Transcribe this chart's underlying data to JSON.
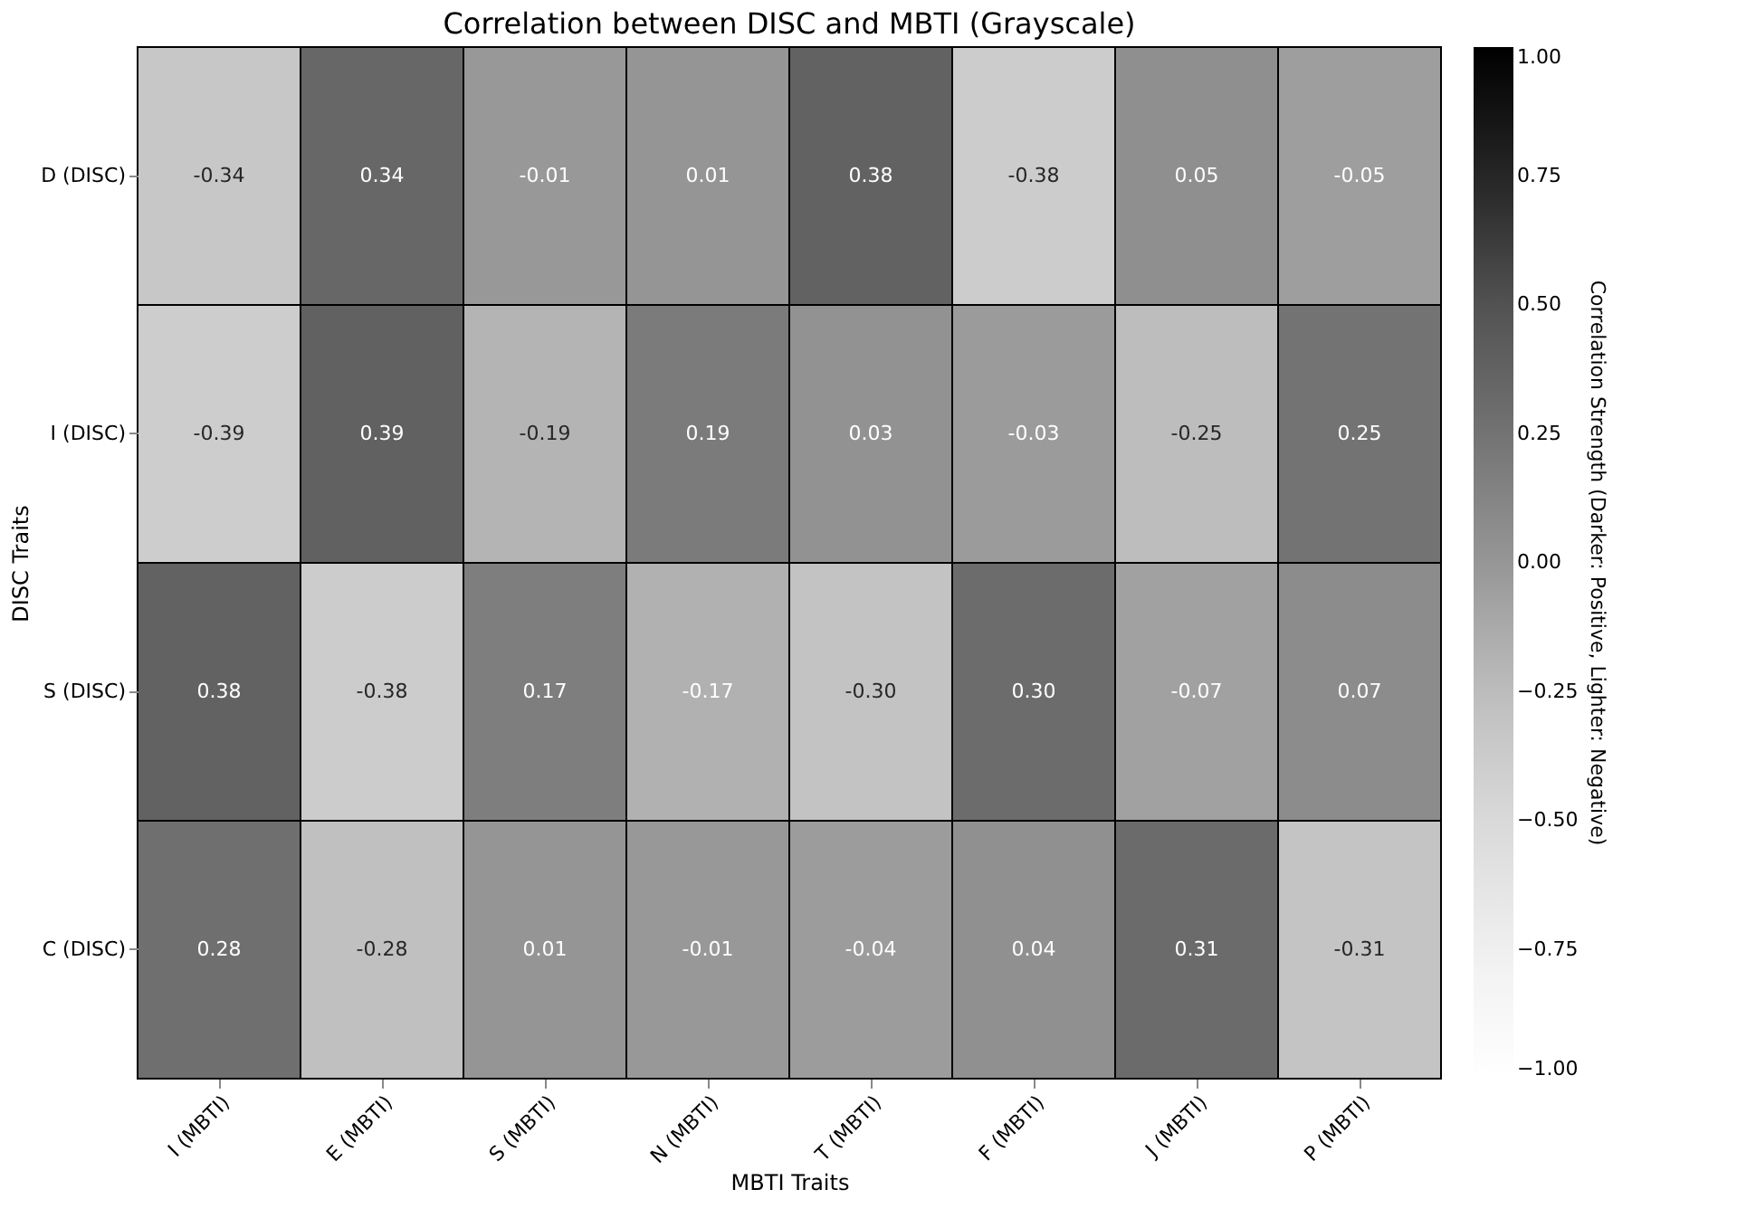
{
  "chart_data": {
    "type": "heatmap",
    "title": "Correlation between DISC and MBTI (Grayscale)",
    "xlabel": "MBTI Traits",
    "ylabel": "DISC Traits",
    "clabel": "Correlation Strength (Darker: Positive, Lighter: Negative)",
    "categories": [
      "I (MBTI)",
      "E (MBTI)",
      "S (MBTI)",
      "N (MBTI)",
      "T (MBTI)",
      "F (MBTI)",
      "J (MBTI)",
      "P (MBTI)"
    ],
    "y_categories": [
      "D (DISC)",
      "I (DISC)",
      "S (DISC)",
      "C (DISC)"
    ],
    "cells": [
      [
        -0.34,
        0.34,
        -0.01,
        0.01,
        0.38,
        -0.38,
        0.05,
        -0.05
      ],
      [
        -0.39,
        0.39,
        -0.19,
        0.19,
        0.03,
        -0.03,
        -0.25,
        0.25
      ],
      [
        0.38,
        -0.38,
        0.17,
        -0.17,
        -0.3,
        0.3,
        -0.07,
        0.07
      ],
      [
        0.28,
        -0.28,
        0.01,
        -0.01,
        -0.04,
        0.04,
        0.31,
        -0.31
      ]
    ],
    "cell_labels": [
      [
        "-0.34",
        "0.34",
        "-0.01",
        "0.01",
        "0.38",
        "-0.38",
        "0.05",
        "-0.05"
      ],
      [
        "-0.39",
        "0.39",
        "-0.19",
        "0.19",
        "0.03",
        "-0.03",
        "-0.25",
        "0.25"
      ],
      [
        "0.38",
        "-0.38",
        "0.17",
        "-0.17",
        "-0.30",
        "0.30",
        "-0.07",
        "0.07"
      ],
      [
        "0.28",
        "-0.28",
        "0.01",
        "-0.01",
        "-0.04",
        "0.04",
        "0.31",
        "-0.31"
      ]
    ],
    "clim": [
      -1,
      1
    ],
    "cticks": [
      {
        "value": -1,
        "label": "−1.00"
      },
      {
        "value": -0.75,
        "label": "−0.75"
      },
      {
        "value": -0.5,
        "label": "−0.50"
      },
      {
        "value": -0.25,
        "label": "−0.25"
      },
      {
        "value": 0,
        "label": "0.00"
      },
      {
        "value": 0.25,
        "label": "0.25"
      },
      {
        "value": 0.5,
        "label": "0.50"
      },
      {
        "value": 0.75,
        "label": "0.75"
      },
      {
        "value": 1,
        "label": "1.00"
      }
    ],
    "grid": false
  }
}
